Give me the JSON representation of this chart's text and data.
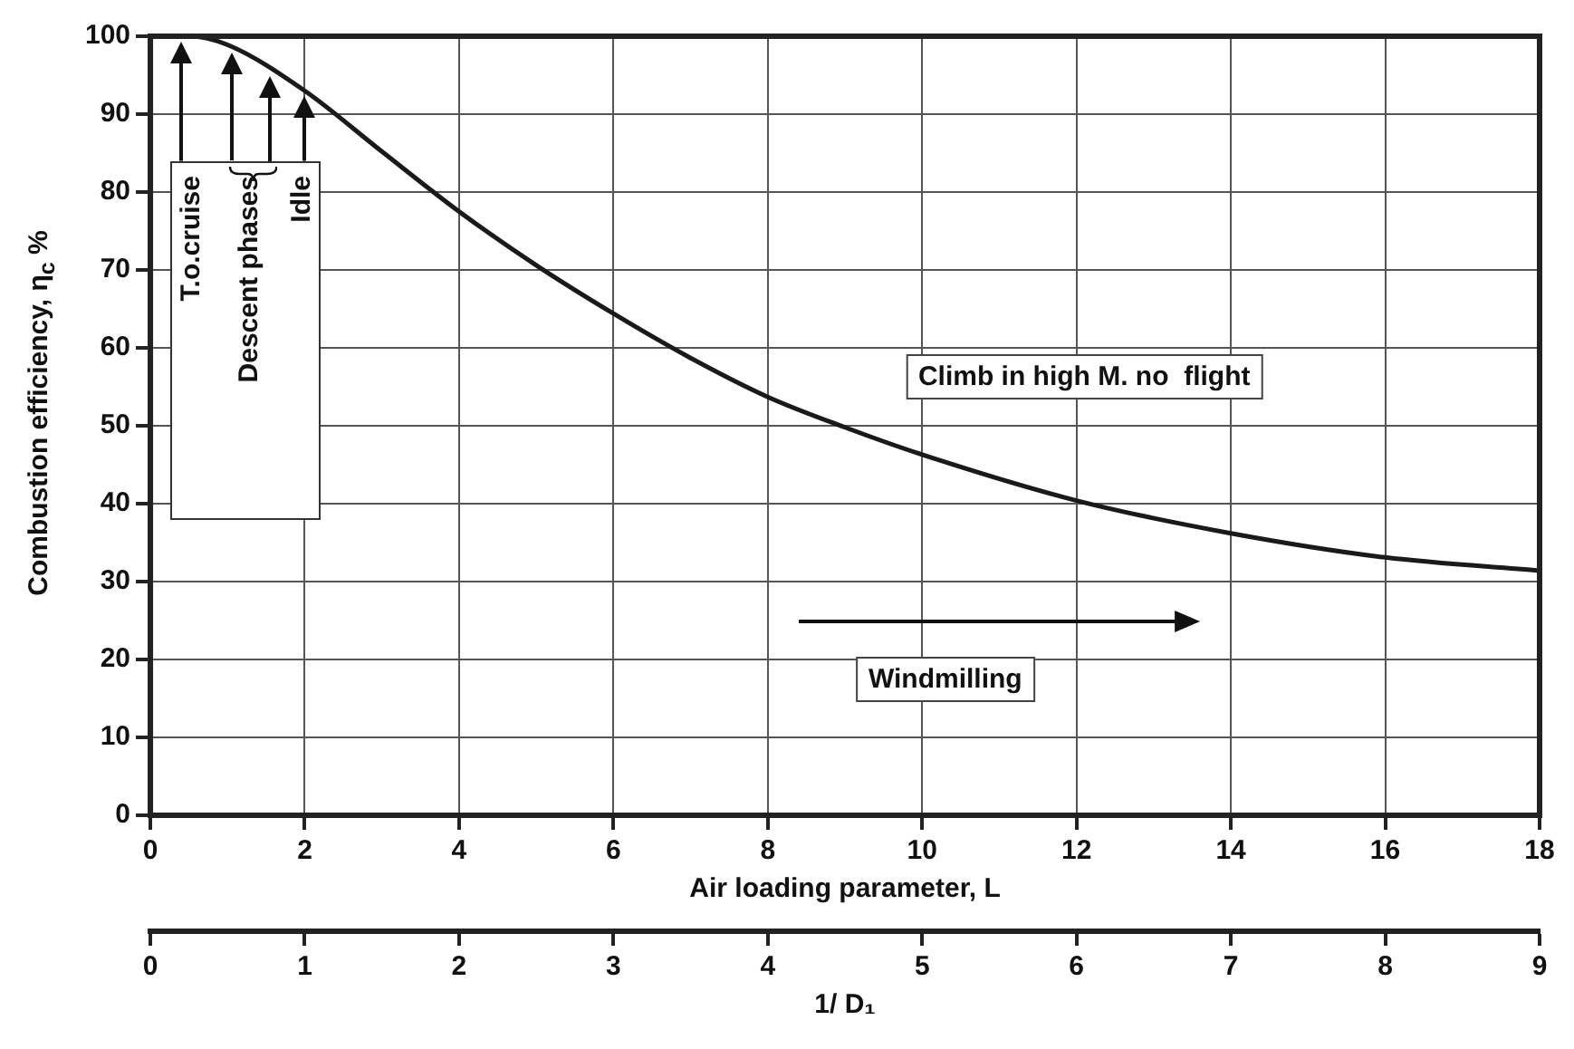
{
  "chart_data": {
    "type": "line",
    "xlabel": "Air loading parameter, L",
    "ylabel": "Combustion efficiency, η$_{c}$ %",
    "x2label": "1/ D₁",
    "series": [
      {
        "color": "#1a1a1a",
        "x": [
          0,
          0.5,
          1,
          2,
          3,
          4,
          5,
          6,
          7,
          8,
          9,
          10,
          12,
          14,
          16,
          18
        ],
        "values": [
          100,
          100,
          98.9,
          93,
          85.2,
          77.5,
          70.6,
          64.4,
          58.7,
          53.7,
          49.8,
          46.3,
          40.4,
          36.2,
          33.1,
          31.4
        ]
      }
    ],
    "xlim": [
      0,
      18
    ],
    "xticks": [
      0,
      2,
      4,
      6,
      8,
      10,
      12,
      14,
      16,
      18
    ],
    "ylim": [
      0,
      100
    ],
    "yticks": [
      0,
      10,
      20,
      30,
      40,
      50,
      60,
      70,
      80,
      90,
      100
    ],
    "x2lim": [
      0,
      9
    ],
    "x2ticks": [
      0,
      1,
      2,
      3,
      4,
      5,
      6,
      7,
      8,
      9
    ],
    "annotations": [
      "T.o.cruise",
      "Descent phases",
      "Idle",
      "Climb in high M. no  flight",
      "Windmilling"
    ],
    "grid": true,
    "legend": false,
    "marker": "none",
    "line_style": "solid"
  }
}
